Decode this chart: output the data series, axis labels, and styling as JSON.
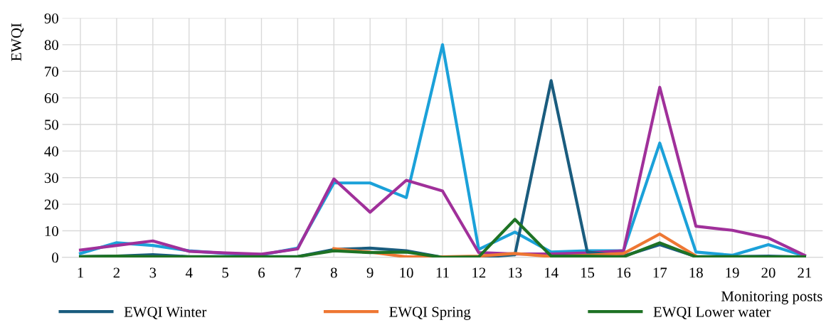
{
  "chart_data": {
    "type": "line",
    "xlabel": "Monitoring posts",
    "ylabel": "EWQI",
    "categories": [
      "1",
      "2",
      "3",
      "4",
      "5",
      "6",
      "7",
      "8",
      "9",
      "10",
      "11",
      "12",
      "13",
      "14",
      "15",
      "16",
      "17",
      "18",
      "19",
      "20",
      "21"
    ],
    "ylim": [
      0,
      90
    ],
    "yticks": [
      0,
      10,
      20,
      30,
      40,
      50,
      60,
      70,
      80,
      90
    ],
    "grid": true,
    "legend": "bottom",
    "marker": "none",
    "line_style": "solid",
    "series": [
      {
        "color": "#1ba1d9",
        "values": [
          1.5,
          5.5,
          4.5,
          2.5,
          1.5,
          1,
          3.5,
          28,
          28,
          22.5,
          80,
          3,
          9.5,
          2,
          2.5,
          2.5,
          43,
          2,
          0.8,
          4.8,
          0.5
        ]
      },
      {
        "color": "#a0309a",
        "values": [
          2.8,
          4.5,
          6.2,
          2.3,
          1.7,
          1.2,
          3.2,
          29.5,
          17,
          29,
          25,
          1.8,
          1.3,
          1.3,
          1.7,
          2.5,
          64,
          11.7,
          10.2,
          7.3,
          0.8
        ]
      },
      {
        "name": "EWQI Winter",
        "color": "#1a5c7e",
        "values": [
          0.3,
          0.5,
          1,
          0.3,
          0.3,
          0.3,
          0.3,
          3,
          3.5,
          2.5,
          0,
          0,
          1,
          66.5,
          2,
          0.5,
          4.8,
          0.3,
          0.3,
          0.5,
          0.2
        ]
      },
      {
        "name": "EWQI Spring",
        "color": "#ee7733",
        "values": [
          null,
          null,
          null,
          null,
          null,
          null,
          null,
          3.3,
          2,
          0.2,
          0.2,
          0.5,
          1.5,
          0.3,
          0.8,
          1.5,
          8.8,
          0.5,
          null,
          null,
          null
        ]
      },
      {
        "name": "EWQI Lower water",
        "color": "#1e7224",
        "values": [
          0.3,
          0.5,
          0.3,
          0.2,
          0.2,
          0.2,
          0.3,
          2.5,
          1.8,
          2,
          0,
          0.2,
          14.3,
          0.5,
          0.5,
          0.2,
          5.5,
          0.2,
          0.3,
          0.2,
          0.2
        ]
      }
    ]
  }
}
